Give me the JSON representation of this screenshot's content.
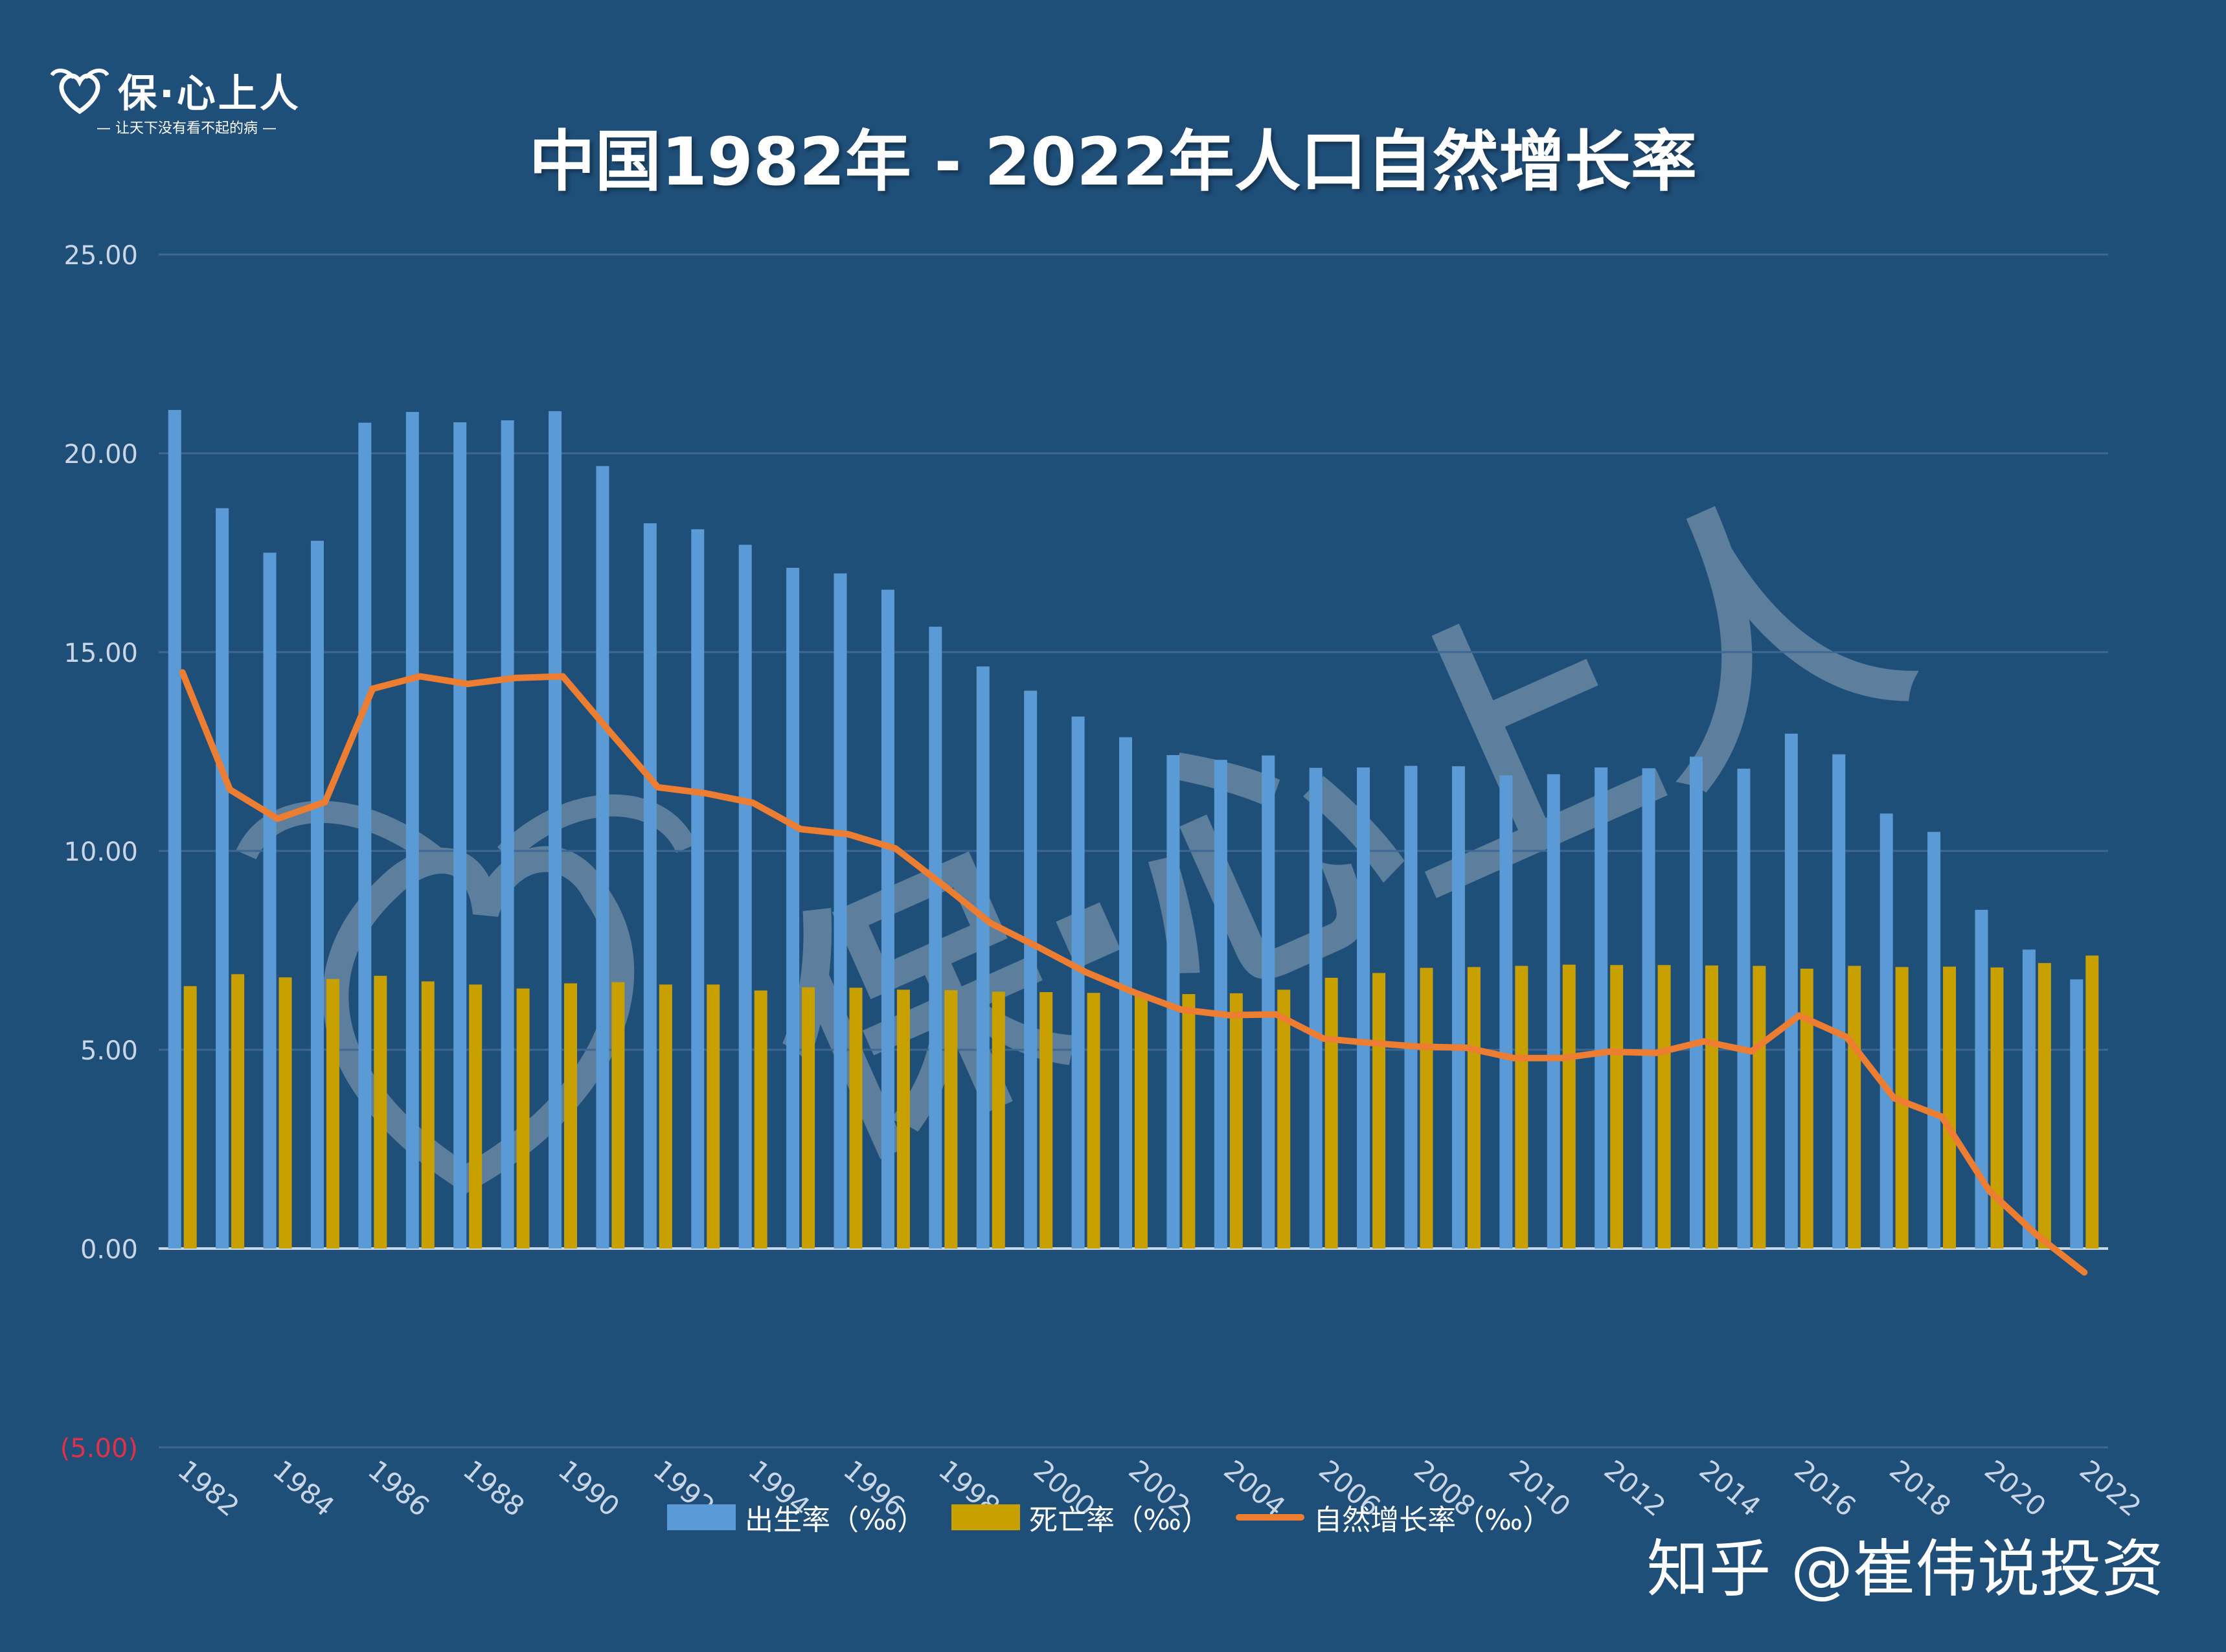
{
  "logo": {
    "title": "保·心上人",
    "subtitle": "— 让天下没有看不起的病 —",
    "icon": "wings-heart-icon"
  },
  "watermark": {
    "text": "保·心上人",
    "icon": "wings-heart-icon"
  },
  "credit": "知乎 @崔伟说投资",
  "colors": {
    "background": "#1f4e79",
    "birth": "#5b9bd5",
    "death": "#c8a000",
    "natural": "#ed7d31",
    "negative_tick": "#e0314a"
  },
  "chart_data": {
    "type": "bar",
    "title": "中国1982年 - 2022年人口自然增长率",
    "x": [
      1982,
      1983,
      1984,
      1985,
      1986,
      1987,
      1988,
      1989,
      1990,
      1991,
      1992,
      1993,
      1994,
      1995,
      1996,
      1997,
      1998,
      1999,
      2000,
      2001,
      2002,
      2003,
      2004,
      2005,
      2006,
      2007,
      2008,
      2009,
      2010,
      2011,
      2012,
      2013,
      2014,
      2015,
      2016,
      2017,
      2018,
      2019,
      2020,
      2021,
      2022
    ],
    "x_tick_labels": [
      "1982",
      "1984",
      "1986",
      "1988",
      "1990",
      "1992",
      "1994",
      "1996",
      "1998",
      "2000",
      "2002",
      "2004",
      "2006",
      "2008",
      "2010",
      "2012",
      "2014",
      "2016",
      "2018",
      "2020",
      "2022"
    ],
    "ylim": [
      -5,
      25
    ],
    "y_ticks": [
      25,
      20,
      15,
      10,
      5,
      0,
      -5
    ],
    "y_tick_labels": [
      "25.00",
      "20.00",
      "15.00",
      "10.00",
      "5.00",
      "0.00",
      "(5.00)"
    ],
    "grid": true,
    "legend_position": "bottom",
    "series": [
      {
        "name": "出生率（‰）",
        "kind": "bar",
        "values": [
          21.09,
          18.62,
          17.5,
          17.8,
          20.77,
          21.04,
          20.78,
          20.83,
          21.06,
          19.68,
          18.24,
          18.09,
          17.7,
          17.12,
          16.98,
          16.57,
          15.64,
          14.64,
          14.03,
          13.38,
          12.86,
          12.41,
          12.29,
          12.4,
          12.09,
          12.1,
          12.14,
          12.13,
          11.9,
          11.93,
          12.1,
          12.08,
          12.37,
          12.07,
          12.95,
          12.43,
          10.94,
          10.48,
          8.52,
          7.52,
          6.77
        ]
      },
      {
        "name": "死亡率（‰）",
        "kind": "bar",
        "values": [
          6.6,
          6.9,
          6.82,
          6.78,
          6.86,
          6.72,
          6.64,
          6.54,
          6.67,
          6.7,
          6.64,
          6.64,
          6.49,
          6.57,
          6.56,
          6.51,
          6.5,
          6.46,
          6.45,
          6.43,
          6.41,
          6.4,
          6.42,
          6.51,
          6.81,
          6.93,
          7.06,
          7.08,
          7.11,
          7.14,
          7.13,
          7.13,
          7.12,
          7.11,
          7.04,
          7.11,
          7.08,
          7.09,
          7.07,
          7.18,
          7.37
        ]
      },
      {
        "name": "自然增长率（‰）",
        "kind": "line",
        "values": [
          14.49,
          11.54,
          10.81,
          11.23,
          14.08,
          14.39,
          14.2,
          14.35,
          14.39,
          12.98,
          11.6,
          11.45,
          11.21,
          10.55,
          10.42,
          10.06,
          9.14,
          8.18,
          7.58,
          6.95,
          6.45,
          6.01,
          5.87,
          5.89,
          5.28,
          5.17,
          5.08,
          5.05,
          4.79,
          4.79,
          4.95,
          4.92,
          5.21,
          4.96,
          5.86,
          5.32,
          3.78,
          3.32,
          1.45,
          0.34,
          -0.6
        ]
      }
    ]
  }
}
